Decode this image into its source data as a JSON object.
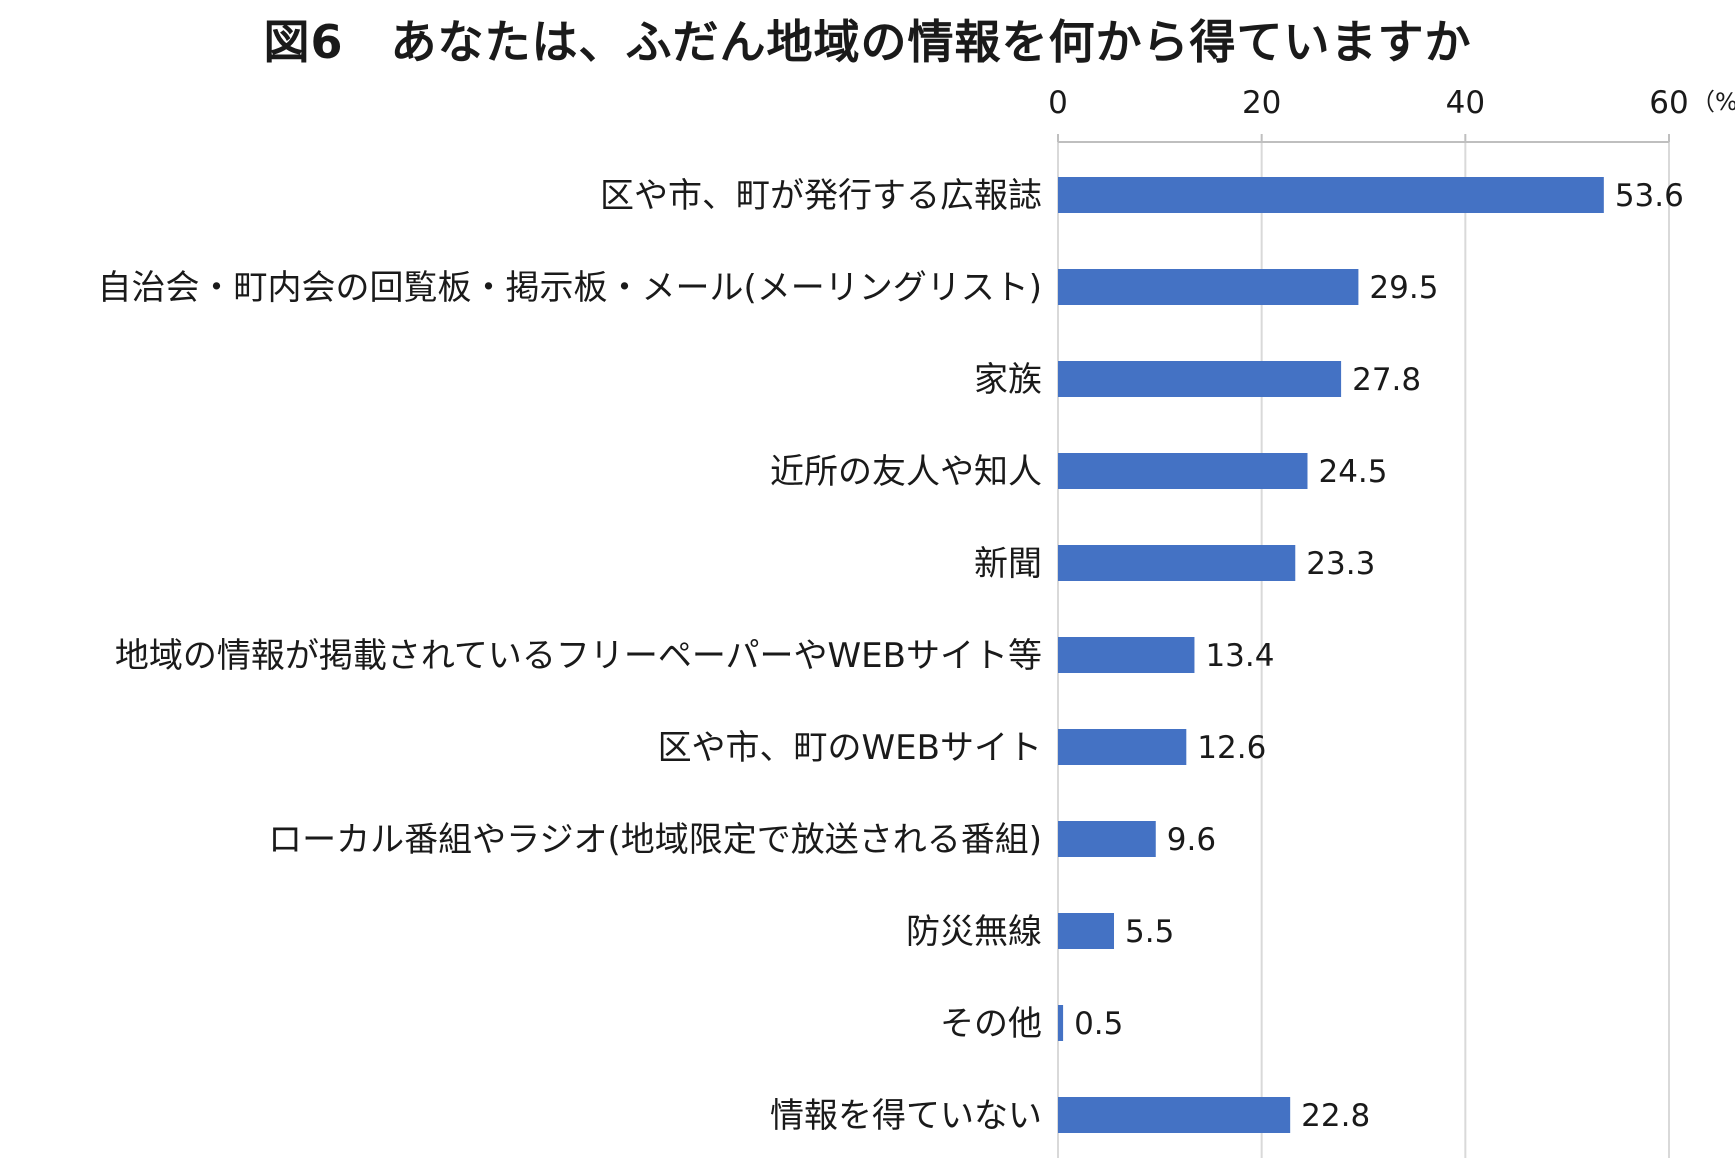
{
  "chart_data": {
    "type": "bar",
    "orientation": "horizontal",
    "title": "図6　あなたは、ふだん地域の情報を何から得ていますか",
    "unit": "（%）",
    "xlim": [
      0,
      60
    ],
    "ticks": [
      "0",
      "20",
      "40",
      "60"
    ],
    "tick_values": [
      0,
      20,
      40,
      60
    ],
    "grid": true,
    "bar_color": "#4472C4",
    "categories": [
      "区や市、町が発行する広報誌",
      "自治会・町内会の回覧板・掲示板・メール(メーリングリスト)",
      "家族",
      "近所の友人や知人",
      "新聞",
      "地域の情報が掲載されているフリーペーパーやWEBサイト等",
      "区や市、町のWEBサイト",
      "ローカル番組やラジオ(地域限定で放送される番組)",
      "防災無線",
      "その他",
      "情報を得ていない"
    ],
    "values": [
      53.6,
      29.5,
      27.8,
      24.5,
      23.3,
      13.4,
      12.6,
      9.6,
      5.5,
      0.5,
      22.8
    ],
    "value_labels": [
      "53.6",
      "29.5",
      "27.8",
      "24.5",
      "23.3",
      "13.4",
      "12.6",
      "9.6",
      "5.5",
      "0.5",
      "22.8"
    ]
  }
}
